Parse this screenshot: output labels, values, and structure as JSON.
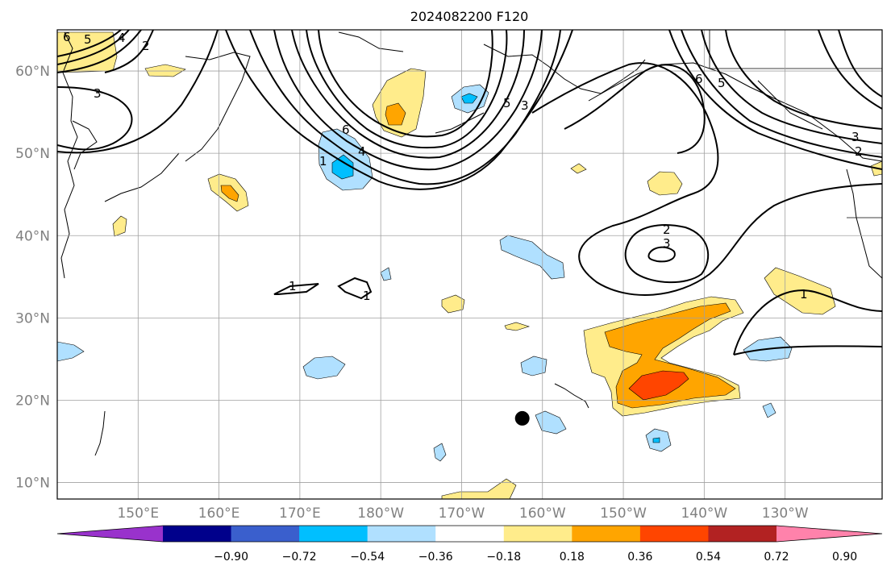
{
  "title": "2024082200 F120",
  "map": {
    "lat_labels": [
      "60°N",
      "50°N",
      "40°N",
      "30°N",
      "20°N",
      "10°N"
    ],
    "lon_labels": [
      "150°E",
      "160°E",
      "170°E",
      "180°W",
      "170°W",
      "160°W",
      "150°W",
      "140°W",
      "130°W"
    ],
    "lat_values": [
      60,
      50,
      40,
      30,
      20,
      10
    ],
    "lon_values": [
      150,
      160,
      170,
      180,
      190,
      200,
      210,
      220,
      230
    ],
    "extent": {
      "lon_min": 140,
      "lon_max": 242,
      "lat_min": 8,
      "lat_max": 65
    },
    "grid": true,
    "marker": {
      "lon": 197.5,
      "lat": 17.8,
      "color": "#000000"
    }
  },
  "colorbar": {
    "tick_labels": [
      "−0.90",
      "−0.72",
      "−0.54",
      "−0.36",
      "−0.18",
      "0.18",
      "0.36",
      "0.54",
      "0.72",
      "0.90"
    ],
    "bounds": [
      -0.9,
      -0.72,
      -0.54,
      -0.36,
      -0.18,
      0.18,
      0.36,
      0.54,
      0.72,
      0.9
    ],
    "colors": [
      "#9932cc",
      "#00008b",
      "#3a5fcd",
      "#00bfff",
      "#b0e0ff",
      "#ffffff",
      "#ffec8b",
      "#ffa500",
      "#ff4500",
      "#b22222",
      "#ff82ab"
    ],
    "extend": "both"
  },
  "contour_labels": [
    "6",
    "5",
    "4",
    "2",
    "3",
    "6",
    "4",
    "1",
    "5",
    "3",
    "2",
    "3",
    "1",
    "1",
    "6",
    "5",
    "3",
    "2",
    "1"
  ]
}
